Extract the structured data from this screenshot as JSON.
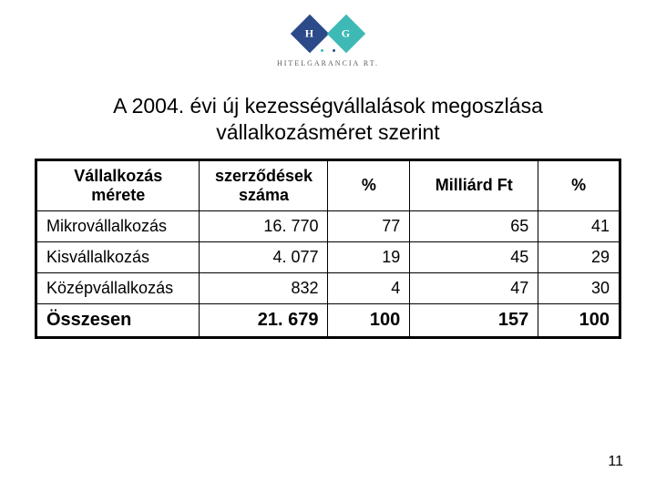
{
  "logo": {
    "letter_left": "H",
    "letter_right": "G",
    "diamond_left_color": "#2c4a8a",
    "diamond_right_color": "#3fb9b5",
    "dot_left_color": "#3fb9b5",
    "dot_right_color": "#2c4a8a",
    "company_text": "HITELGARANCIA RT."
  },
  "title_line1": "A 2004. évi  új kezességvállalások megoszlása",
  "title_line2": "vállalkozásméret szerint",
  "table": {
    "col_widths_pct": [
      28,
      22,
      14,
      22,
      14
    ],
    "columns": [
      "Vállalkozás mérete",
      "szerződések száma",
      "%",
      "Milliárd Ft",
      "%"
    ],
    "rows": [
      {
        "label": "Mikrovállalkozás",
        "contracts": "16. 770",
        "pct1": "77",
        "billion_ft": "65",
        "pct2": "41"
      },
      {
        "label": "Kisvállalkozás",
        "contracts": "4. 077",
        "pct1": "19",
        "billion_ft": "45",
        "pct2": "29"
      },
      {
        "label": "Középvállalkozás",
        "contracts": "832",
        "pct1": "4",
        "billion_ft": "47",
        "pct2": "30"
      }
    ],
    "total": {
      "label": "Összesen",
      "contracts": "21. 679",
      "pct1": "100",
      "billion_ft": "157",
      "pct2": "100"
    }
  },
  "page_number": "11"
}
